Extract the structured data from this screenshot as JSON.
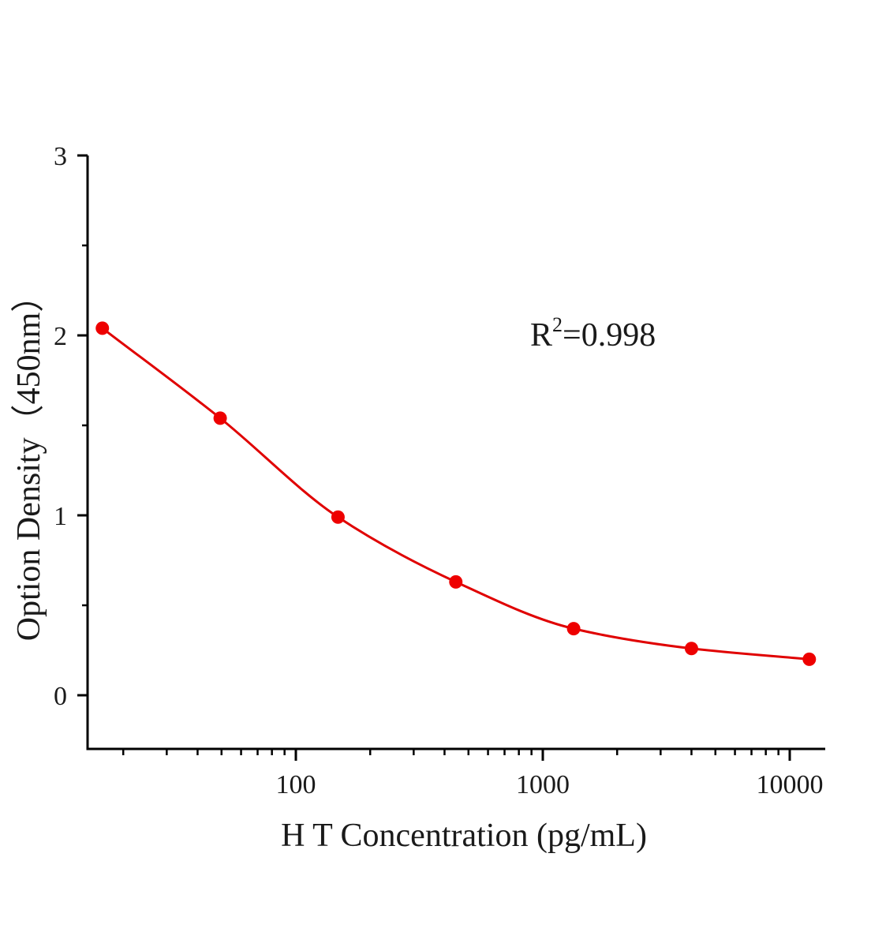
{
  "chart_data": {
    "type": "scatter",
    "xlabel": "H T Concentration (pg/mL)",
    "ylabel": "Option Density（450nm）",
    "x_scale": "log",
    "xlim": [
      12.5,
      13500
    ],
    "ylim": [
      -0.3,
      3
    ],
    "x_tick_labels": [
      "100",
      "1000",
      "10000"
    ],
    "x_ticks": [
      100,
      1000,
      10000
    ],
    "y_tick_labels": [
      "0",
      "1",
      "2",
      "3"
    ],
    "y_ticks": [
      0,
      1,
      2,
      3
    ],
    "grid": false,
    "annotation": {
      "base": "R",
      "sup": "2",
      "rest": "=0.998"
    },
    "series": [
      {
        "type": "scatter",
        "x": [
          16.46,
          49.38,
          148.15,
          444.44,
          1333.33,
          4000,
          12000
        ],
        "y": [
          2.04,
          1.54,
          0.99,
          0.63,
          0.37,
          0.26,
          0.2
        ],
        "color": "#ee0000"
      },
      {
        "type": "line",
        "curve": "4PL",
        "color": "#e00000"
      }
    ]
  }
}
